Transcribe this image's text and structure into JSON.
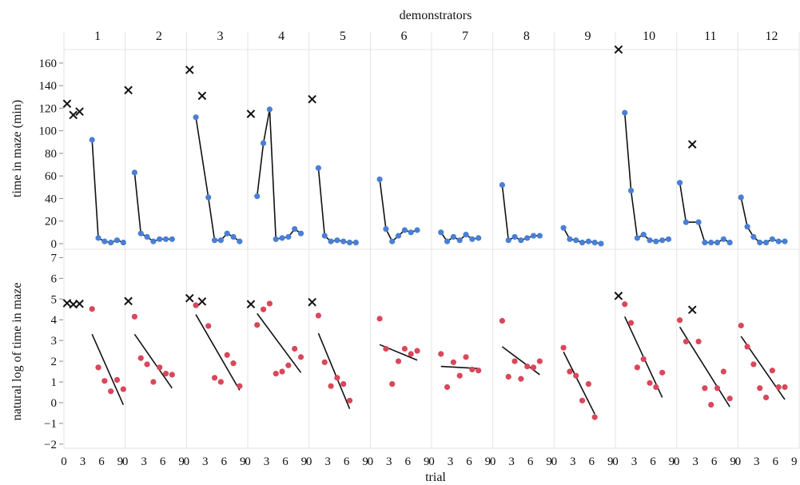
{
  "colors": {
    "top_points": "#4a7fd4",
    "bottom_points": "#d9475a",
    "demonstrator_marker": "#111111",
    "fit_line": "#111111",
    "grid": "#e3e3e3"
  },
  "chart_data": {
    "type": "scatter",
    "title": "",
    "header_label": "demonstrators",
    "xlabel": "trial",
    "x_ticks": [
      0,
      3,
      6,
      9
    ],
    "panels": [
      "1",
      "2",
      "3",
      "4",
      "5",
      "6",
      "7",
      "8",
      "9",
      "10",
      "11",
      "12"
    ],
    "x_range": [
      0,
      9.8
    ],
    "rows": [
      {
        "ylabel": "time in maze (min)",
        "ylim": [
          -5,
          172
        ],
        "y_ticks": [
          0,
          20,
          40,
          60,
          80,
          100,
          120,
          140,
          160
        ],
        "series": [
          {
            "panel": "1",
            "demonstrator_x": [
              0.5,
              1.5,
              2.5
            ],
            "demonstrator_y": [
              124,
              114,
              117
            ],
            "trial_x": [
              4.5,
              5.5,
              6.5,
              7.5,
              8.5,
              9.5
            ],
            "trial_y": [
              92,
              5,
              2,
              1,
              3,
              1
            ],
            "fit": "connected"
          },
          {
            "panel": "2",
            "demonstrator_x": [
              0.5
            ],
            "demonstrator_y": [
              136
            ],
            "trial_x": [
              1.5,
              2.5,
              3.5,
              4.5,
              5.5,
              6.5,
              7.5
            ],
            "trial_y": [
              63,
              9,
              6,
              2,
              4,
              4,
              4
            ],
            "fit": "connected"
          },
          {
            "panel": "3",
            "demonstrator_x": [
              0.5,
              2.5
            ],
            "demonstrator_y": [
              154,
              131
            ],
            "trial_x": [
              1.5,
              3.5,
              4.5,
              5.5,
              6.5,
              7.5,
              8.5
            ],
            "trial_y": [
              112,
              41,
              3,
              3,
              9,
              6,
              2
            ],
            "fit": "connected"
          },
          {
            "panel": "4",
            "demonstrator_x": [
              0.5
            ],
            "demonstrator_y": [
              115
            ],
            "trial_x": [
              1.5,
              2.5,
              3.5,
              4.5,
              5.5,
              6.5,
              7.5,
              8.5
            ],
            "trial_y": [
              42,
              89,
              119,
              4,
              5,
              6,
              13,
              9
            ],
            "fit": "connected"
          },
          {
            "panel": "5",
            "demonstrator_x": [
              0.5
            ],
            "demonstrator_y": [
              128
            ],
            "trial_x": [
              1.5,
              2.5,
              3.5,
              4.5,
              5.5,
              6.5,
              7.5
            ],
            "trial_y": [
              67,
              7,
              2,
              3,
              2,
              1,
              1
            ],
            "fit": "connected"
          },
          {
            "panel": "6",
            "demonstrator_x": [],
            "demonstrator_y": [],
            "trial_x": [
              1.5,
              2.5,
              3.5,
              4.5,
              5.5,
              6.5,
              7.5
            ],
            "trial_y": [
              57,
              13,
              2,
              7,
              12,
              10,
              12
            ],
            "fit": "connected"
          },
          {
            "panel": "7",
            "demonstrator_x": [],
            "demonstrator_y": [],
            "trial_x": [
              1.5,
              2.5,
              3.5,
              4.5,
              5.5,
              6.5,
              7.5
            ],
            "trial_y": [
              10,
              2,
              6,
              3,
              8,
              4,
              5
            ],
            "fit": "connected"
          },
          {
            "panel": "8",
            "demonstrator_x": [],
            "demonstrator_y": [],
            "trial_x": [
              1.5,
              2.5,
              3.5,
              4.5,
              5.5,
              6.5,
              7.5
            ],
            "trial_y": [
              52,
              3,
              6,
              3,
              5,
              7,
              7
            ],
            "fit": "connected"
          },
          {
            "panel": "9",
            "demonstrator_x": [],
            "demonstrator_y": [],
            "trial_x": [
              1.5,
              2.5,
              3.5,
              4.5,
              5.5,
              6.5,
              7.5
            ],
            "trial_y": [
              14,
              4,
              3,
              1,
              2,
              1,
              0
            ],
            "fit": "connected"
          },
          {
            "panel": "10",
            "demonstrator_x": [
              0.5
            ],
            "demonstrator_y": [
              172
            ],
            "trial_x": [
              1.5,
              2.5,
              3.5,
              4.5,
              5.5,
              6.5,
              7.5,
              8.5
            ],
            "trial_y": [
              116,
              47,
              5,
              8,
              3,
              2,
              3,
              4
            ],
            "fit": "connected"
          },
          {
            "panel": "11",
            "demonstrator_x": [
              2.5
            ],
            "demonstrator_y": [
              88
            ],
            "trial_x": [
              0.5,
              1.5,
              3.5,
              4.5,
              5.5,
              6.5,
              7.5,
              8.5
            ],
            "trial_y": [
              54,
              19,
              19,
              1,
              1,
              1,
              4,
              1
            ],
            "fit": "connected"
          },
          {
            "panel": "12",
            "demonstrator_x": [],
            "demonstrator_y": [],
            "trial_x": [
              0.5,
              1.5,
              2.5,
              3.5,
              4.5,
              5.5,
              6.5,
              7.5
            ],
            "trial_y": [
              41,
              15,
              6,
              1,
              1,
              4,
              2,
              2
            ],
            "fit": "connected"
          }
        ]
      },
      {
        "ylabel": "natural log of time in maze",
        "ylim": [
          -2.2,
          7.4
        ],
        "y_ticks": [
          -2,
          -1,
          0,
          1,
          2,
          3,
          4,
          5,
          6,
          7
        ],
        "series": [
          {
            "panel": "1",
            "demonstrator_x": [
              0.5,
              1.5,
              2.5
            ],
            "demonstrator_y": [
              4.8,
              4.74,
              4.77
            ],
            "trial_x": [
              4.5,
              5.5,
              6.5,
              7.5,
              8.5,
              9.5
            ],
            "trial_y": [
              4.52,
              1.7,
              1.05,
              0.55,
              1.1,
              0.65
            ],
            "fit_x": [
              4.5,
              9.5
            ],
            "fit_y": [
              3.3,
              -0.1
            ]
          },
          {
            "panel": "2",
            "demonstrator_x": [
              0.5
            ],
            "demonstrator_y": [
              4.9
            ],
            "trial_x": [
              1.5,
              2.5,
              3.5,
              4.5,
              5.5,
              6.5,
              7.5
            ],
            "trial_y": [
              4.15,
              2.15,
              1.85,
              1.0,
              1.7,
              1.4,
              1.35
            ],
            "fit_x": [
              1.5,
              7.5
            ],
            "fit_y": [
              3.3,
              0.7
            ]
          },
          {
            "panel": "3",
            "demonstrator_x": [
              0.5,
              2.5
            ],
            "demonstrator_y": [
              5.04,
              4.88
            ],
            "trial_x": [
              1.5,
              3.5,
              4.5,
              5.5,
              6.5,
              7.5,
              8.5
            ],
            "trial_y": [
              4.7,
              3.7,
              1.2,
              1.0,
              2.3,
              1.9,
              0.8
            ],
            "fit_x": [
              1.5,
              8.5
            ],
            "fit_y": [
              4.25,
              0.6
            ]
          },
          {
            "panel": "4",
            "demonstrator_x": [
              0.5
            ],
            "demonstrator_y": [
              4.75
            ],
            "trial_x": [
              1.5,
              2.5,
              3.5,
              4.5,
              5.5,
              6.5,
              7.5,
              8.5
            ],
            "trial_y": [
              3.75,
              4.5,
              4.78,
              1.4,
              1.5,
              1.8,
              2.6,
              2.2
            ],
            "fit_x": [
              1.5,
              8.5
            ],
            "fit_y": [
              4.3,
              1.45
            ]
          },
          {
            "panel": "5",
            "demonstrator_x": [
              0.5
            ],
            "demonstrator_y": [
              4.85
            ],
            "trial_x": [
              1.5,
              2.5,
              3.5,
              4.5,
              5.5,
              6.5
            ],
            "trial_y": [
              4.2,
              1.95,
              0.8,
              1.2,
              0.9,
              0.1
            ],
            "fit_x": [
              1.5,
              6.5
            ],
            "fit_y": [
              3.35,
              -0.3
            ]
          },
          {
            "panel": "6",
            "demonstrator_x": [],
            "demonstrator_y": [],
            "trial_x": [
              1.5,
              2.5,
              3.5,
              4.5,
              5.5,
              6.5,
              7.5
            ],
            "trial_y": [
              4.05,
              2.6,
              0.9,
              2.0,
              2.6,
              2.35,
              2.5
            ],
            "fit_x": [
              1.5,
              7.5
            ],
            "fit_y": [
              2.8,
              2.05
            ]
          },
          {
            "panel": "7",
            "demonstrator_x": [],
            "demonstrator_y": [],
            "trial_x": [
              1.5,
              2.5,
              3.5,
              4.5,
              5.5,
              6.5,
              7.5
            ],
            "trial_y": [
              2.35,
              0.75,
              1.95,
              1.3,
              2.2,
              1.6,
              1.55
            ],
            "fit_x": [
              1.5,
              7.5
            ],
            "fit_y": [
              1.75,
              1.65
            ]
          },
          {
            "panel": "8",
            "demonstrator_x": [],
            "demonstrator_y": [],
            "trial_x": [
              1.5,
              2.5,
              3.5,
              4.5,
              5.5,
              6.5,
              7.5
            ],
            "trial_y": [
              3.95,
              1.25,
              2.0,
              1.15,
              1.75,
              1.7,
              2.0
            ],
            "fit_x": [
              1.5,
              7.5
            ],
            "fit_y": [
              2.7,
              1.35
            ]
          },
          {
            "panel": "9",
            "demonstrator_x": [],
            "demonstrator_y": [],
            "trial_x": [
              1.5,
              2.5,
              3.5,
              4.5,
              5.5,
              6.5
            ],
            "trial_y": [
              2.65,
              1.5,
              1.3,
              0.1,
              0.9,
              -0.7
            ],
            "fit_x": [
              1.5,
              6.5
            ],
            "fit_y": [
              2.45,
              -0.55
            ]
          },
          {
            "panel": "10",
            "demonstrator_x": [
              0.5
            ],
            "demonstrator_y": [
              5.15
            ],
            "trial_x": [
              1.5,
              2.5,
              3.5,
              4.5,
              5.5,
              6.5,
              7.5
            ],
            "trial_y": [
              4.75,
              3.85,
              1.7,
              2.1,
              0.95,
              0.75,
              1.45
            ],
            "fit_x": [
              1.5,
              7.5
            ],
            "fit_y": [
              4.15,
              0.25
            ]
          },
          {
            "panel": "11",
            "demonstrator_x": [
              2.5
            ],
            "demonstrator_y": [
              4.48
            ],
            "trial_x": [
              0.5,
              1.5,
              3.5,
              4.5,
              5.5,
              6.5,
              7.5,
              8.5
            ],
            "trial_y": [
              3.98,
              2.95,
              2.95,
              0.7,
              -0.1,
              0.7,
              1.5,
              0.2
            ],
            "fit_x": [
              0.5,
              8.5
            ],
            "fit_y": [
              3.65,
              -0.2
            ]
          },
          {
            "panel": "12",
            "demonstrator_x": [],
            "demonstrator_y": [],
            "trial_x": [
              0.5,
              1.5,
              2.5,
              3.5,
              4.5,
              5.5,
              6.5,
              7.5
            ],
            "trial_y": [
              3.72,
              2.7,
              1.85,
              0.7,
              0.25,
              1.55,
              0.75,
              0.75
            ],
            "fit_x": [
              0.5,
              7.5
            ],
            "fit_y": [
              3.2,
              0.15
            ]
          }
        ]
      }
    ]
  }
}
